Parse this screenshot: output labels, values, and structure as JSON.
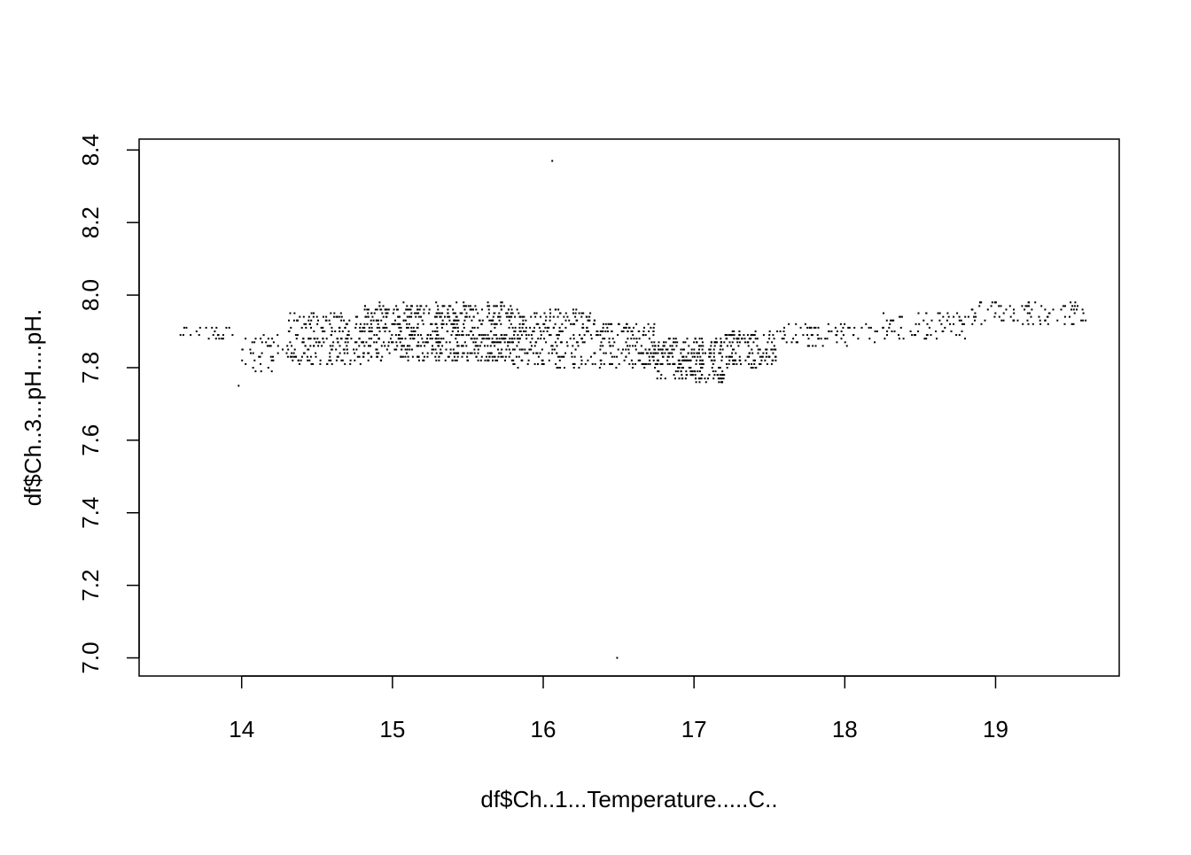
{
  "chart_data": {
    "type": "scatter",
    "title": "",
    "xlabel": "df$Ch..1...Temperature.....C..",
    "ylabel": "df$Ch..3...pH....pH.",
    "xlim": [
      13.32,
      19.82
    ],
    "ylim": [
      6.95,
      8.43
    ],
    "x_ticks": [
      14,
      15,
      16,
      17,
      18,
      19
    ],
    "y_ticks": [
      7.0,
      7.2,
      7.4,
      7.6,
      7.8,
      8.0,
      8.2,
      8.4
    ],
    "y_tick_labels": [
      "7.0",
      "7.2",
      "7.4",
      "7.6",
      "7.8",
      "8.0",
      "8.2",
      "8.4"
    ],
    "grid": false,
    "marker": "dot",
    "point_color": "#000000",
    "notable_points": [
      {
        "x": 16.06,
        "y": 8.37
      },
      {
        "x": 16.49,
        "y": 7.0
      },
      {
        "x": 13.98,
        "y": 7.75
      }
    ],
    "point_clusters": [
      {
        "x_range": [
          13.55,
          13.95
        ],
        "y_center": 7.895,
        "y_spread": 0.02,
        "count": 24
      },
      {
        "x_range": [
          14.0,
          14.3
        ],
        "y_center": 7.84,
        "y_spread": 0.05,
        "count": 40
      },
      {
        "x_range": [
          14.3,
          14.8
        ],
        "y_center": 7.88,
        "y_spread": 0.07,
        "count": 190
      },
      {
        "x_range": [
          14.8,
          15.35
        ],
        "y_center": 7.9,
        "y_spread": 0.08,
        "count": 320
      },
      {
        "x_range": [
          15.35,
          15.8
        ],
        "y_center": 7.9,
        "y_spread": 0.08,
        "count": 280
      },
      {
        "x_range": [
          15.8,
          16.35
        ],
        "y_center": 7.88,
        "y_spread": 0.08,
        "count": 230
      },
      {
        "x_range": [
          16.35,
          16.75
        ],
        "y_center": 7.86,
        "y_spread": 0.06,
        "count": 150
      },
      {
        "x_range": [
          16.75,
          17.2
        ],
        "y_center": 7.82,
        "y_spread": 0.06,
        "count": 230
      },
      {
        "x_range": [
          17.2,
          17.55
        ],
        "y_center": 7.85,
        "y_spread": 0.05,
        "count": 130
      },
      {
        "x_range": [
          17.55,
          18.2
        ],
        "y_center": 7.89,
        "y_spread": 0.03,
        "count": 70
      },
      {
        "x_range": [
          18.2,
          18.8
        ],
        "y_center": 7.915,
        "y_spread": 0.035,
        "count": 70
      },
      {
        "x_range": [
          18.8,
          19.6
        ],
        "y_center": 7.95,
        "y_spread": 0.035,
        "count": 90
      }
    ]
  }
}
